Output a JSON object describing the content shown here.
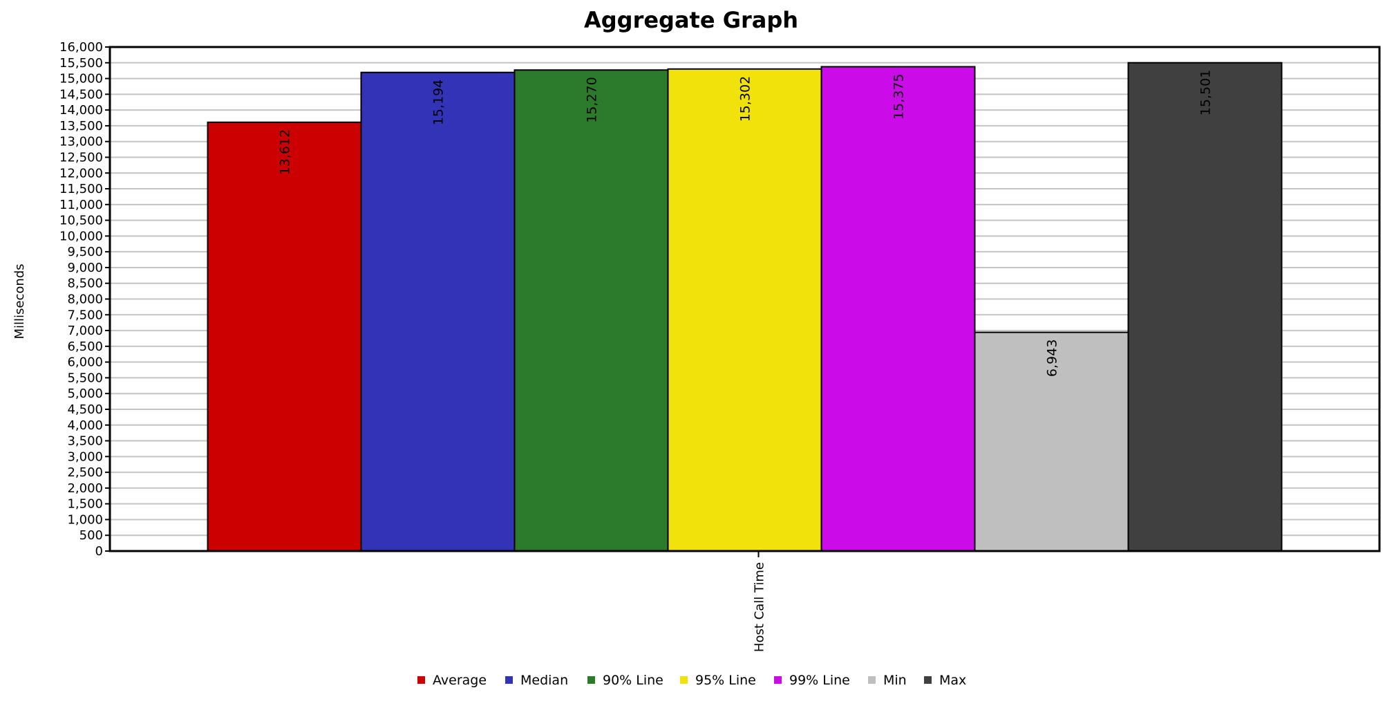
{
  "chart_data": {
    "type": "bar",
    "title": "Aggregate Graph",
    "ylabel": "Milliseconds",
    "xlabel": "",
    "categories": [
      "Host Call Time"
    ],
    "ylim": [
      0,
      16000
    ],
    "ytick_step": 500,
    "grid": true,
    "legend_position": "bottom",
    "series": [
      {
        "name": "Average",
        "color": "#cc0000",
        "values": [
          13612
        ],
        "label": "13,612"
      },
      {
        "name": "Median",
        "color": "#3333b8",
        "values": [
          15194
        ],
        "label": "15,194"
      },
      {
        "name": "90% Line",
        "color": "#2c7a2c",
        "values": [
          15270
        ],
        "label": "15,270"
      },
      {
        "name": "95% Line",
        "color": "#f0e20a",
        "values": [
          15302
        ],
        "label": "15,302"
      },
      {
        "name": "99% Line",
        "color": "#cc0ce8",
        "values": [
          15375
        ],
        "label": "15,375"
      },
      {
        "name": "Min",
        "color": "#bfbfbf",
        "values": [
          6943
        ],
        "label": "6,943"
      },
      {
        "name": "Max",
        "color": "#404040",
        "values": [
          15501
        ],
        "label": "15,501"
      }
    ]
  }
}
